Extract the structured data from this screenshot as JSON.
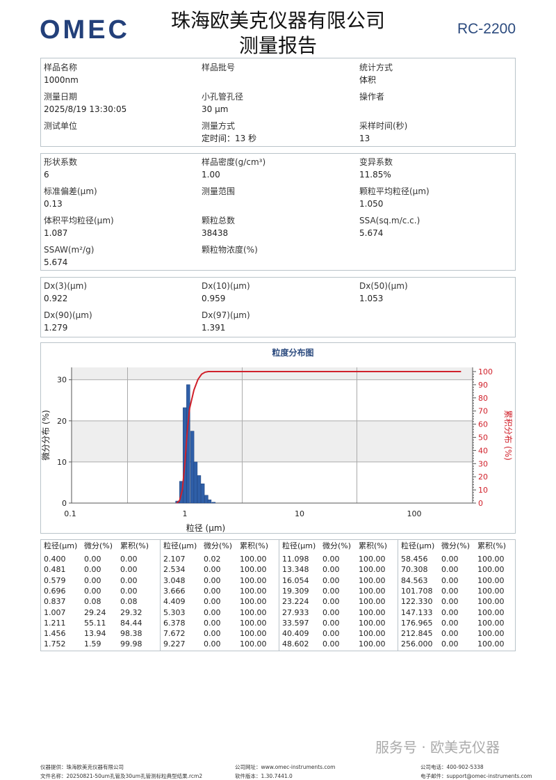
{
  "header": {
    "logo": "OMEC",
    "company": "珠海欧美克仪器有限公司",
    "report_title": "测量报告",
    "model": "RC-2200"
  },
  "sample_info": [
    {
      "label": "样品名称",
      "value": "1000nm"
    },
    {
      "label": "样品批号",
      "value": ""
    },
    {
      "label": "统计方式",
      "value": "体积"
    },
    {
      "label": "测量日期",
      "value": "2025/8/19 13:30:05"
    },
    {
      "label": "小孔管孔径",
      "value": "30 µm"
    },
    {
      "label": "操作者",
      "value": ""
    },
    {
      "label": "测试单位",
      "value": ""
    },
    {
      "label": "测量方式",
      "value": "定时间：13 秒"
    },
    {
      "label": "采样时间(秒)",
      "value": "13"
    }
  ],
  "results": [
    {
      "label": "形状系数",
      "value": "6"
    },
    {
      "label": "样品密度(g/cm³)",
      "value": "1.00"
    },
    {
      "label": "变异系数",
      "value": "11.85%"
    },
    {
      "label": "标准偏差(µm)",
      "value": "0.13"
    },
    {
      "label": "测量范围",
      "value": ""
    },
    {
      "label": "颗粒平均粒径(µm)",
      "value": "1.050"
    },
    {
      "label": "体积平均粒径(µm)",
      "value": "1.087"
    },
    {
      "label": "颗粒总数",
      "value": "38438"
    },
    {
      "label": "SSA(sq.m/c.c.)",
      "value": "5.674"
    },
    {
      "label": "SSAW(m²/g)",
      "value": "5.674"
    },
    {
      "label": "颗粒物浓度(%)",
      "value": ""
    }
  ],
  "dx": [
    {
      "label": "Dx(3)(µm)",
      "value": "0.922"
    },
    {
      "label": "Dx(10)(µm)",
      "value": "0.959"
    },
    {
      "label": "Dx(50)(µm)",
      "value": "1.053"
    },
    {
      "label": "Dx(90)(µm)",
      "value": "1.279"
    },
    {
      "label": "Dx(97)(µm)",
      "value": "1.391"
    }
  ],
  "chart_data": {
    "type": "bar",
    "title": "粒度分布图",
    "xlabel": "粒径 (µm)",
    "ylabel": "微分分布 (%)",
    "y2label": "累积分布 (%)",
    "xscale": "log",
    "xlim": [
      0.1,
      320
    ],
    "xticks": [
      "0.1",
      "1",
      "10",
      "100"
    ],
    "ylim": [
      0,
      33
    ],
    "yticks": [
      "0",
      "10",
      "20",
      "30"
    ],
    "y2lim": [
      0,
      100
    ],
    "y2ticks": [
      "0",
      "10",
      "20",
      "30",
      "40",
      "50",
      "60",
      "70",
      "80",
      "90",
      "100"
    ],
    "bar_color": "#2f5fa8",
    "line_color": "#d0202a",
    "series": [
      {
        "type": "bar",
        "x": [
          0.86,
          0.93,
          0.997,
          1.07,
          1.16,
          1.24,
          1.33,
          1.43,
          1.54,
          1.64,
          1.78
        ],
        "values": [
          0.5,
          5.3,
          23.2,
          28.8,
          17.5,
          10.0,
          6.7,
          4.7,
          1.9,
          0.8,
          0.2
        ]
      },
      {
        "type": "line",
        "axis": "right",
        "x": [
          0.85,
          0.9,
          0.95,
          1.0,
          1.05,
          1.1,
          1.2,
          1.3,
          1.4,
          1.5,
          1.6,
          256
        ],
        "values": [
          0,
          2,
          10,
          30,
          55,
          72,
          86,
          94,
          98,
          99.5,
          100,
          100
        ]
      }
    ],
    "grid": true
  },
  "table": {
    "headers": [
      "粒径(µm)",
      "微分(%)",
      "累积(%)"
    ],
    "groups": [
      [
        [
          "0.400",
          "0.00",
          "0.00"
        ],
        [
          "0.481",
          "0.00",
          "0.00"
        ],
        [
          "0.579",
          "0.00",
          "0.00"
        ],
        [
          "0.696",
          "0.00",
          "0.00"
        ],
        [
          "0.837",
          "0.08",
          "0.08"
        ],
        [
          "1.007",
          "29.24",
          "29.32"
        ],
        [
          "1.211",
          "55.11",
          "84.44"
        ],
        [
          "1.456",
          "13.94",
          "98.38"
        ],
        [
          "1.752",
          "1.59",
          "99.98"
        ]
      ],
      [
        [
          "2.107",
          "0.02",
          "100.00"
        ],
        [
          "2.534",
          "0.00",
          "100.00"
        ],
        [
          "3.048",
          "0.00",
          "100.00"
        ],
        [
          "3.666",
          "0.00",
          "100.00"
        ],
        [
          "4.409",
          "0.00",
          "100.00"
        ],
        [
          "5.303",
          "0.00",
          "100.00"
        ],
        [
          "6.378",
          "0.00",
          "100.00"
        ],
        [
          "7.672",
          "0.00",
          "100.00"
        ],
        [
          "9.227",
          "0.00",
          "100.00"
        ]
      ],
      [
        [
          "11.098",
          "0.00",
          "100.00"
        ],
        [
          "13.348",
          "0.00",
          "100.00"
        ],
        [
          "16.054",
          "0.00",
          "100.00"
        ],
        [
          "19.309",
          "0.00",
          "100.00"
        ],
        [
          "23.224",
          "0.00",
          "100.00"
        ],
        [
          "27.933",
          "0.00",
          "100.00"
        ],
        [
          "33.597",
          "0.00",
          "100.00"
        ],
        [
          "40.409",
          "0.00",
          "100.00"
        ],
        [
          "48.602",
          "0.00",
          "100.00"
        ]
      ],
      [
        [
          "58.456",
          "0.00",
          "100.00"
        ],
        [
          "70.308",
          "0.00",
          "100.00"
        ],
        [
          "84.563",
          "0.00",
          "100.00"
        ],
        [
          "101.708",
          "0.00",
          "100.00"
        ],
        [
          "122.330",
          "0.00",
          "100.00"
        ],
        [
          "147.133",
          "0.00",
          "100.00"
        ],
        [
          "176.965",
          "0.00",
          "100.00"
        ],
        [
          "212.845",
          "0.00",
          "100.00"
        ],
        [
          "256.000",
          "0.00",
          "100.00"
        ]
      ]
    ]
  },
  "footer": {
    "provider": "仪器提供：珠海欧美克仪器有限公司",
    "filename": "文件名称：20250821-50um孔管及30um孔管测标粒典型结果.rcm2",
    "website": "公司网址：www.omec-instruments.com",
    "version": "软件版本：1.30.7441.0",
    "phone": "公司电话：400-902-5338",
    "email": "电子邮件：support@omec-instruments.com",
    "watermark": "服务号 · 欧美克仪器"
  }
}
